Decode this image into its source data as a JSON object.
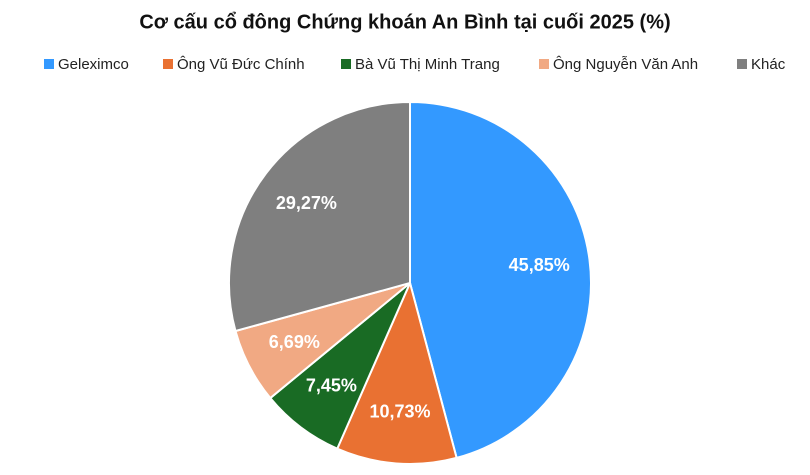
{
  "chart_data": {
    "type": "pie",
    "title": "Cơ cấu cổ đông Chứng khoán An Bình tại cuối 2025 (%)",
    "categories": [
      "Geleximco",
      "Ông Vũ Đức Chính",
      "Bà Vũ Thị Minh Trang",
      "Ông Nguyễn Văn Anh",
      "Khác"
    ],
    "values": [
      45.85,
      10.73,
      7.45,
      6.69,
      29.27
    ],
    "value_labels": [
      "45,85%",
      "10,73%",
      "7,45%",
      "6,69%",
      "29,27%"
    ],
    "colors": [
      "#3399ff",
      "#e97132",
      "#196b24",
      "#f1a983",
      "#7f7f7f"
    ],
    "legend": "top"
  }
}
